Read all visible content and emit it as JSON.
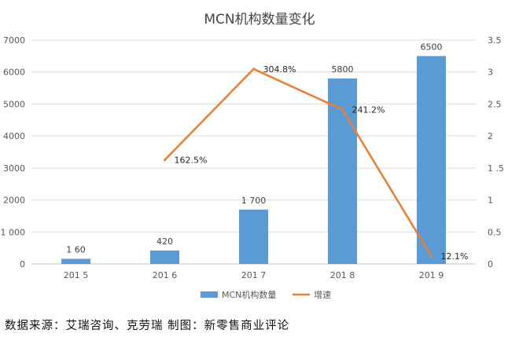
{
  "chart_data": {
    "type": "bar",
    "title": "MCN机构数量变化",
    "categories": [
      "201 5",
      "201 6",
      "201 7",
      "201 8",
      "201 9"
    ],
    "series": [
      {
        "name": "MCN机构数量",
        "kind": "bar",
        "axis": "left",
        "values": [
          160,
          420,
          1700,
          5800,
          6500
        ],
        "labels": [
          "1 60",
          "420",
          "1 700",
          "5800",
          "6500"
        ],
        "color": "#5b9bd5"
      },
      {
        "name": "增速",
        "kind": "line",
        "axis": "right",
        "values": [
          null,
          1.625,
          3.048,
          2.412,
          0.121
        ],
        "labels": [
          "",
          "162.5%",
          "304.8%",
          "241.2%",
          "12.1%"
        ],
        "color": "#ed7d31"
      }
    ],
    "left_axis": {
      "ylim": [
        0,
        7000
      ],
      "ticks": [
        "0",
        "1 000",
        "2000",
        "3000",
        "4000",
        "5000",
        "6000",
        "7000"
      ]
    },
    "right_axis": {
      "ylim": [
        0,
        3.5
      ],
      "ticks": [
        "0",
        "0.5",
        "1",
        "1 .5",
        "2",
        "2.5",
        "3",
        "3.5"
      ]
    },
    "grid": true,
    "legend_position": "bottom"
  },
  "footer": {
    "source": "数据来源：艾瑞咨询、克劳瑞  制图：新零售商业评论"
  }
}
